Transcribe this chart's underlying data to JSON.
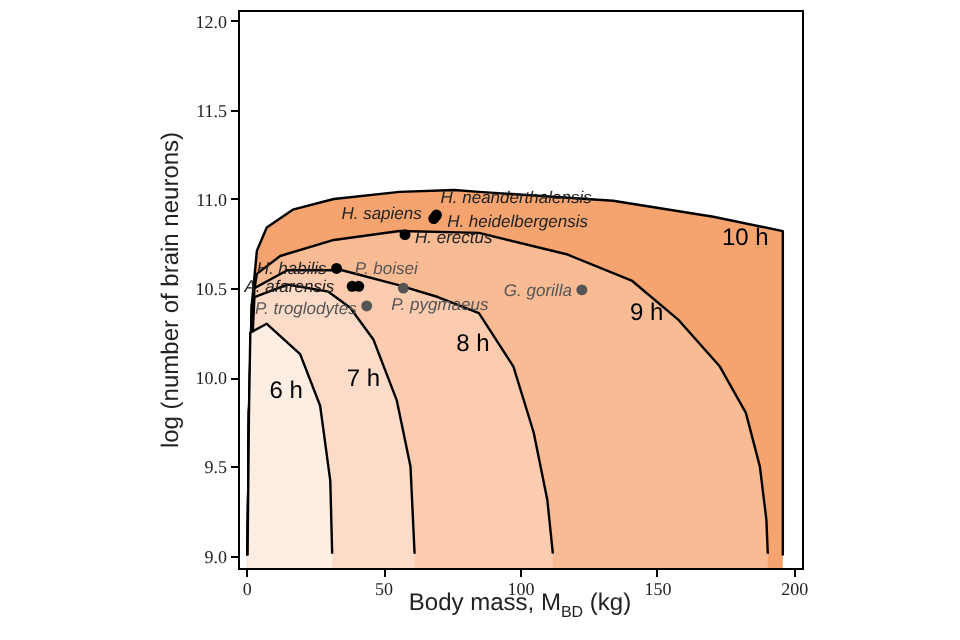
{
  "chart_data": {
    "type": "area",
    "xlabel": "Body mass, M$_{BD}$ (kg)",
    "ylabel": "log (number of brain neurons)",
    "xlim": [
      -3,
      203
    ],
    "ylim": [
      8.93,
      12.06
    ],
    "xticks": [
      0,
      50,
      100,
      150,
      200
    ],
    "yticks": [
      {
        "value": 9,
        "label": "9.0"
      },
      9.5,
      {
        "value": 10,
        "label": "10.0"
      },
      10.5,
      {
        "value": 11,
        "label": "11.0"
      },
      11.5,
      {
        "value": 12,
        "label": "12.0"
      }
    ],
    "grid": false,
    "series": [
      {
        "name": "10 h",
        "color": "#f5a470",
        "x": [
          0.5,
          1,
          2,
          3.9,
          7.5,
          17,
          32,
          56,
          76,
          85,
          134,
          170.6,
          196,
          196
        ],
        "values": [
          9.0,
          9.8,
          10.4,
          10.71,
          10.84,
          10.94,
          11.0,
          11.04,
          11.05,
          11.04,
          10.99,
          10.9,
          10.82,
          9.0
        ]
      },
      {
        "name": "9 h",
        "color": "#f9bb94",
        "x": [
          0.5,
          1,
          2,
          3.9,
          12.4,
          32,
          56,
          85,
          117,
          141,
          158,
          173,
          182.5,
          187.6,
          190,
          190.5
        ],
        "values": [
          9.0,
          9.8,
          10.4,
          10.58,
          10.68,
          10.77,
          10.82,
          10.81,
          10.69,
          10.54,
          10.32,
          10.06,
          9.8,
          9.5,
          9.2,
          9.01
        ]
      },
      {
        "name": "8 h",
        "color": "#fbccaf",
        "x": [
          0.5,
          1,
          3,
          15,
          35,
          55,
          70,
          85,
          97.6,
          105,
          110,
          112
        ],
        "values": [
          9.0,
          9.8,
          10.5,
          10.6,
          10.6,
          10.52,
          10.45,
          10.36,
          10.06,
          9.69,
          9.31,
          9.01
        ]
      },
      {
        "name": "7 h",
        "color": "#fcdcc8",
        "x": [
          0.5,
          1,
          3,
          15,
          30,
          38,
          46.5,
          55,
          60,
          61.5
        ],
        "values": [
          9.0,
          9.8,
          10.45,
          10.52,
          10.48,
          10.39,
          10.21,
          9.87,
          9.5,
          9.01
        ]
      },
      {
        "name": "6 h",
        "color": "#fdeee4",
        "x": [
          0.5,
          1,
          1.5,
          7.5,
          19.7,
          27,
          30.7,
          31.4
        ],
        "values": [
          9.0,
          9.8,
          10.25,
          10.3,
          10.13,
          9.84,
          9.42,
          9.01
        ]
      },
      {
        "type": "scatter",
        "color": "#000000",
        "x": [
          69.5,
          68.5,
          69,
          58,
          33,
          41.1,
          38.7
        ],
        "values": [
          10.91,
          10.89,
          10.9,
          10.8,
          10.61,
          10.51,
          10.51
        ]
      },
      {
        "type": "scatter",
        "color": "#555555",
        "x": [
          57.4,
          44,
          122.6
        ],
        "values": [
          10.5,
          10.4,
          10.49
        ]
      }
    ],
    "annotations": [
      {
        "text": "H. neanderthalensis",
        "x": 69.5,
        "y": 10.91
      },
      {
        "text": "H. sapiens",
        "x": 68.5,
        "y": 10.89
      },
      {
        "text": "H. heidelbergensis",
        "x": 69,
        "y": 10.9
      },
      {
        "text": "H. erectus",
        "x": 58,
        "y": 10.8
      },
      {
        "text": "H. habilis",
        "x": 33,
        "y": 10.61
      },
      {
        "text": "P. boisei",
        "x": 41.1,
        "y": 10.51
      },
      {
        "text": "A. afarensis",
        "x": 38.7,
        "y": 10.51
      },
      {
        "text": "P. pygmaeus",
        "x": 57.4,
        "y": 10.5
      },
      {
        "text": "P. troglodytes",
        "x": 44,
        "y": 10.4
      },
      {
        "text": "G. gorilla",
        "x": 122.6,
        "y": 10.49
      }
    ]
  }
}
